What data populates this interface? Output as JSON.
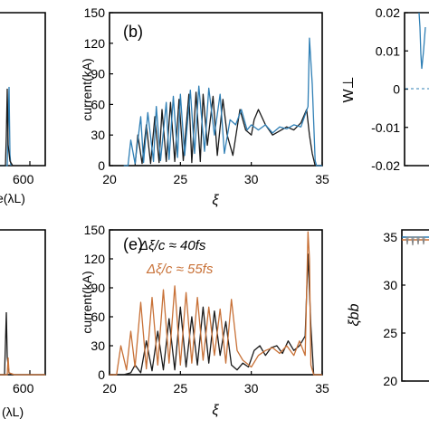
{
  "chart_data": [
    {
      "panel": "a",
      "type": "line",
      "xlabel": "e(λL)",
      "xtick_labels": [
        "600"
      ],
      "ylabel": "",
      "series": []
    },
    {
      "panel": "b",
      "type": "line",
      "label": "(b)",
      "xlabel": "ξ",
      "ylabel": "current(kA)",
      "xlim": [
        20,
        35
      ],
      "ylim": [
        0,
        150
      ],
      "xtick_labels": [
        "20",
        "25",
        "30",
        "35"
      ],
      "ytick_labels": [
        "0",
        "30",
        "60",
        "90",
        "120",
        "150"
      ],
      "series": [
        {
          "color": "#1a1a1a",
          "x": [
            21,
            21.8,
            22,
            22.3,
            22.6,
            22.9,
            23.2,
            23.5,
            23.7,
            24,
            24.3,
            24.6,
            24.9,
            25.2,
            25.6,
            25.8,
            26.1,
            26.4,
            26.6,
            26.9,
            27.3,
            27.6,
            28,
            28.3,
            28.7,
            29.2,
            29.6,
            30,
            30.2,
            30.5,
            31,
            31.5,
            32,
            32.5,
            33,
            33.5,
            33.9,
            34.1,
            34.3,
            34.5,
            34.6,
            35
          ],
          "y": [
            0,
            0,
            30,
            2,
            40,
            2,
            48,
            3,
            55,
            4,
            62,
            4,
            65,
            5,
            70,
            3,
            72,
            4,
            70,
            20,
            68,
            10,
            65,
            30,
            10,
            55,
            35,
            30,
            45,
            55,
            40,
            30,
            34,
            38,
            35,
            42,
            55,
            30,
            12,
            0,
            0,
            0
          ]
        },
        {
          "color": "#2f7fb5",
          "x": [
            21,
            21.3,
            21.5,
            21.8,
            22.2,
            22.4,
            22.7,
            23.1,
            23.3,
            23.6,
            24,
            24.2,
            24.5,
            24.8,
            25,
            25.3,
            25.7,
            26,
            26.3,
            26.7,
            27,
            27.4,
            27.8,
            28.1,
            28.5,
            28.9,
            29.3,
            29.7,
            30,
            30.5,
            31,
            31.5,
            32,
            32.5,
            33,
            33.5,
            34,
            34.1,
            34.3,
            34.5,
            34.6,
            35
          ],
          "y": [
            0,
            0,
            25,
            2,
            48,
            3,
            52,
            4,
            58,
            5,
            62,
            6,
            68,
            8,
            70,
            10,
            74,
            12,
            78,
            14,
            76,
            30,
            70,
            12,
            45,
            40,
            55,
            35,
            40,
            35,
            40,
            32,
            38,
            36,
            40,
            38,
            58,
            125,
            80,
            5,
            0,
            0
          ]
        }
      ]
    },
    {
      "panel": "c",
      "type": "line",
      "xlabel": "",
      "ylabel": "W⊥",
      "ylim": [
        -0.02,
        0.02
      ],
      "ytick_labels": [
        "0.02",
        "0.01",
        "0",
        "-0.01",
        "-0.02"
      ],
      "series": []
    },
    {
      "panel": "d",
      "type": "line",
      "xlabel": "(λL)",
      "xtick_labels": [
        "600"
      ],
      "ylabel": "",
      "series": []
    },
    {
      "panel": "e",
      "type": "line",
      "label": "(e)",
      "xlabel": "ξ",
      "ylabel": "current(kA)",
      "xlim": [
        20,
        35
      ],
      "ylim": [
        0,
        150
      ],
      "xtick_labels": [
        "20",
        "25",
        "30",
        "35"
      ],
      "ytick_labels": [
        "0",
        "30",
        "60",
        "90",
        "120",
        "150"
      ],
      "legend": [
        "Δξ/c ≈ 40fs",
        "Δξ/c ≈ 55fs"
      ],
      "series": [
        {
          "name": "Δξ/c ≈ 40fs",
          "color": "#1a1a1a",
          "x": [
            20,
            21,
            21.5,
            21.8,
            22.2,
            22.6,
            23,
            23.4,
            23.8,
            24.2,
            24.6,
            25,
            25.4,
            25.8,
            26.2,
            26.6,
            27,
            27.4,
            27.8,
            28.2,
            28.6,
            29,
            29.4,
            29.8,
            30.2,
            30.6,
            31,
            31.4,
            31.8,
            32.2,
            32.6,
            33,
            33.4,
            33.8,
            34,
            34.2,
            34.4,
            34.6,
            35
          ],
          "y": [
            0,
            0,
            2,
            10,
            2,
            35,
            4,
            45,
            5,
            58,
            5,
            70,
            8,
            60,
            10,
            70,
            12,
            66,
            20,
            55,
            10,
            5,
            12,
            8,
            25,
            30,
            20,
            28,
            30,
            22,
            35,
            25,
            30,
            40,
            125,
            50,
            0,
            0,
            0
          ]
        },
        {
          "name": "Δξ/c ≈ 55fs",
          "color": "#c87137",
          "x": [
            20,
            20.5,
            20.8,
            21.2,
            21.5,
            21.8,
            22.2,
            22.6,
            23,
            23.4,
            23.8,
            24.2,
            24.6,
            25,
            25.4,
            25.8,
            26.2,
            26.6,
            27,
            27.4,
            27.8,
            28.2,
            28.6,
            29,
            29.4,
            30,
            30.5,
            31,
            31.5,
            32,
            32.5,
            33,
            33.4,
            33.8,
            34,
            34.1,
            34.2,
            34.4,
            34.6,
            35
          ],
          "y": [
            0,
            0,
            30,
            5,
            45,
            8,
            75,
            6,
            80,
            10,
            88,
            12,
            92,
            10,
            85,
            12,
            80,
            15,
            70,
            20,
            68,
            12,
            78,
            25,
            15,
            8,
            20,
            25,
            28,
            22,
            30,
            20,
            35,
            20,
            148,
            120,
            10,
            0,
            0,
            0
          ]
        }
      ]
    },
    {
      "panel": "f",
      "type": "line",
      "xlabel": "",
      "ylabel": "ξbb",
      "ylim": [
        20,
        35
      ],
      "ytick_labels": [
        "35",
        "30",
        "25",
        "20"
      ],
      "series": []
    }
  ]
}
